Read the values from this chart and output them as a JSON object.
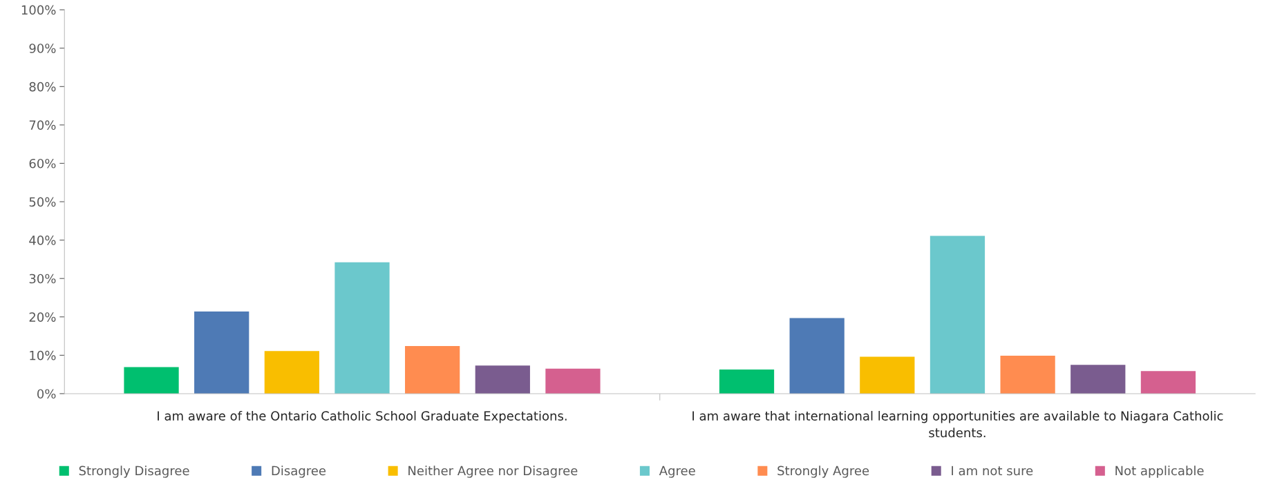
{
  "chart_data": {
    "type": "bar",
    "categories": [
      "I am aware of the Ontario Catholic School Graduate Expectations.",
      "I am aware that international learning opportunities are available to Niagara Catholic students."
    ],
    "series": [
      {
        "name": "Strongly Disagree",
        "color": "#00bf6f",
        "values": [
          0.069,
          0.063
        ]
      },
      {
        "name": "Disagree",
        "color": "#4e7ab5",
        "values": [
          0.214,
          0.197
        ]
      },
      {
        "name": "Neither Agree nor Disagree",
        "color": "#f9be00",
        "values": [
          0.111,
          0.096
        ]
      },
      {
        "name": "Agree",
        "color": "#6bc8cc",
        "values": [
          0.342,
          0.411
        ]
      },
      {
        "name": "Strongly Agree",
        "color": "#ff8c50",
        "values": [
          0.124,
          0.099
        ]
      },
      {
        "name": "I am not sure",
        "color": "#7a5c8f",
        "values": [
          0.073,
          0.075
        ]
      },
      {
        "name": "Not applicable",
        "color": "#d5608f",
        "values": [
          0.065,
          0.059
        ]
      }
    ],
    "ylim": [
      0,
      1
    ],
    "yticks": [
      {
        "value": 0,
        "label": "0%"
      },
      {
        "value": 0.1,
        "label": "10%"
      },
      {
        "value": 0.2,
        "label": "20%"
      },
      {
        "value": 0.3,
        "label": "30%"
      },
      {
        "value": 0.4,
        "label": "40%"
      },
      {
        "value": 0.5,
        "label": "50%"
      },
      {
        "value": 0.6,
        "label": "60%"
      },
      {
        "value": 0.7,
        "label": "70%"
      },
      {
        "value": 0.8,
        "label": "80%"
      },
      {
        "value": 0.9,
        "label": "90%"
      },
      {
        "value": 1,
        "label": "100%"
      }
    ],
    "grid": false,
    "legend": "bottom"
  }
}
